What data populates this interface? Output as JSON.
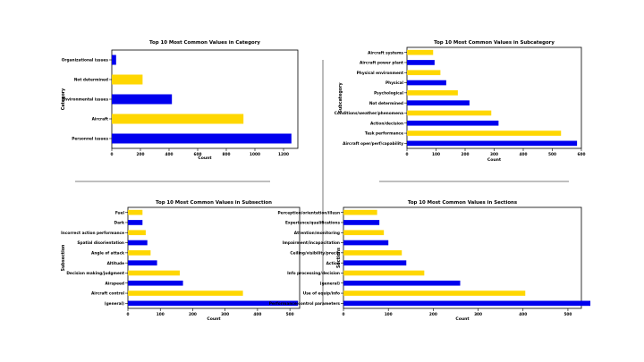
{
  "palette": {
    "yellow": "#FFD700",
    "blue": "#0000EE",
    "axis": "#000000",
    "divider": "#555555"
  },
  "chart_data": [
    {
      "type": "bar",
      "orientation": "horizontal",
      "title": "Top 10 Most Common Values in Category",
      "xlabel": "Count",
      "ylabel": "Category",
      "xlim": [
        0,
        1300
      ],
      "xticks": [
        0,
        200,
        400,
        600,
        800,
        1000,
        1200
      ],
      "categories": [
        "Personnel issues",
        "Aircraft",
        "Environmental issues",
        "Not determined",
        "Organizational issues"
      ],
      "values": [
        1255,
        920,
        420,
        215,
        30
      ],
      "colors": [
        "blue",
        "yellow",
        "blue",
        "yellow",
        "blue"
      ]
    },
    {
      "type": "bar",
      "orientation": "horizontal",
      "title": "Top 10 Most Common Values in Subcategory",
      "xlabel": "Count",
      "ylabel": "Subcategory",
      "xlim": [
        0,
        600
      ],
      "xticks": [
        0,
        100,
        200,
        300,
        400,
        500,
        600
      ],
      "categories": [
        "Aircraft oper/perf/capability",
        "Task performance",
        "Action/decision",
        "Conditions/weather/phenomena",
        "Not determined",
        "Psychological",
        "Physical",
        "Physical environment",
        "Aircraft power plant",
        "Aircraft systems"
      ],
      "values": [
        585,
        530,
        315,
        290,
        215,
        175,
        135,
        115,
        95,
        90
      ],
      "colors": [
        "blue",
        "yellow",
        "blue",
        "yellow",
        "blue",
        "yellow",
        "blue",
        "yellow",
        "blue",
        "yellow"
      ]
    },
    {
      "type": "bar",
      "orientation": "horizontal",
      "title": "Top 10 Most Common Values in Subsection",
      "xlabel": "Count",
      "ylabel": "Subsection",
      "xlim": [
        0,
        530
      ],
      "xticks": [
        0,
        100,
        200,
        300,
        400,
        500
      ],
      "categories": [
        "(general)",
        "Aircraft control",
        "Airspeed",
        "Decision making/judgment",
        "Altitude",
        "Angle of attack",
        "Spatial disorientation",
        "Incorrect action performance",
        "Dark",
        "Fuel"
      ],
      "values": [
        525,
        355,
        170,
        160,
        90,
        70,
        60,
        55,
        45,
        45
      ],
      "colors": [
        "blue",
        "yellow",
        "blue",
        "yellow",
        "blue",
        "yellow",
        "blue",
        "yellow",
        "blue",
        "yellow"
      ]
    },
    {
      "type": "bar",
      "orientation": "horizontal",
      "title": "Top 10 Most Common Values in Sections",
      "xlabel": "Count",
      "ylabel": "Sections",
      "xlim": [
        0,
        530
      ],
      "xticks": [
        0,
        100,
        200,
        300,
        400,
        500
      ],
      "categories": [
        "Performance/control parameters",
        "Use of equip/info",
        "(general)",
        "Info processing/decision",
        "Action",
        "Ceiling/visibility/precip",
        "Impairment/incapacitation",
        "Attention/monitoring",
        "Experience/qualifications",
        "Perception/orientation/illusn"
      ],
      "values": [
        550,
        405,
        260,
        180,
        140,
        130,
        100,
        90,
        80,
        75
      ],
      "colors": [
        "blue",
        "yellow",
        "blue",
        "yellow",
        "blue",
        "yellow",
        "blue",
        "yellow",
        "blue",
        "yellow"
      ]
    }
  ]
}
